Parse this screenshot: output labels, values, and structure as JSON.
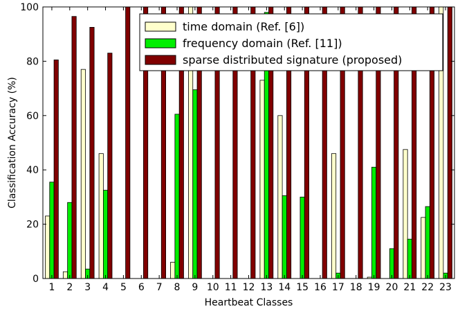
{
  "chart_data": {
    "type": "bar",
    "xlabel": "Heartbeat Classes",
    "ylabel": "Classification Accuracy (%)",
    "ylim": [
      0,
      100
    ],
    "yticks": [
      0,
      20,
      40,
      60,
      80,
      100
    ],
    "categories": [
      "1",
      "2",
      "3",
      "4",
      "5",
      "6",
      "7",
      "8",
      "9",
      "10",
      "11",
      "12",
      "13",
      "14",
      "15",
      "16",
      "17",
      "18",
      "19",
      "20",
      "21",
      "22",
      "23"
    ],
    "legend_position": "top-right",
    "series": [
      {
        "name": "time domain (Ref. [6])",
        "color": "#ffffcc",
        "values": [
          23,
          2.5,
          77,
          46,
          0,
          0,
          0,
          6,
          100,
          0,
          0,
          0,
          73,
          60,
          0,
          0,
          46,
          0,
          0.5,
          0,
          47.5,
          22.5,
          100
        ]
      },
      {
        "name": "frequency domain (Ref. [11])",
        "color": "#00ee00",
        "values": [
          35.5,
          28,
          3.5,
          32.5,
          0,
          0,
          0,
          60.5,
          69.5,
          0,
          0,
          0,
          98,
          30.5,
          30,
          0,
          2,
          0,
          41,
          11,
          14.5,
          26.5,
          2
        ]
      },
      {
        "name": "sparse distributed signature (proposed)",
        "color": "#800000",
        "values": [
          80.5,
          96.5,
          92.5,
          83,
          100,
          100,
          100,
          100,
          100,
          100,
          100,
          100,
          100,
          100,
          100,
          100,
          100,
          100,
          100,
          100,
          100,
          100,
          100
        ]
      }
    ]
  }
}
